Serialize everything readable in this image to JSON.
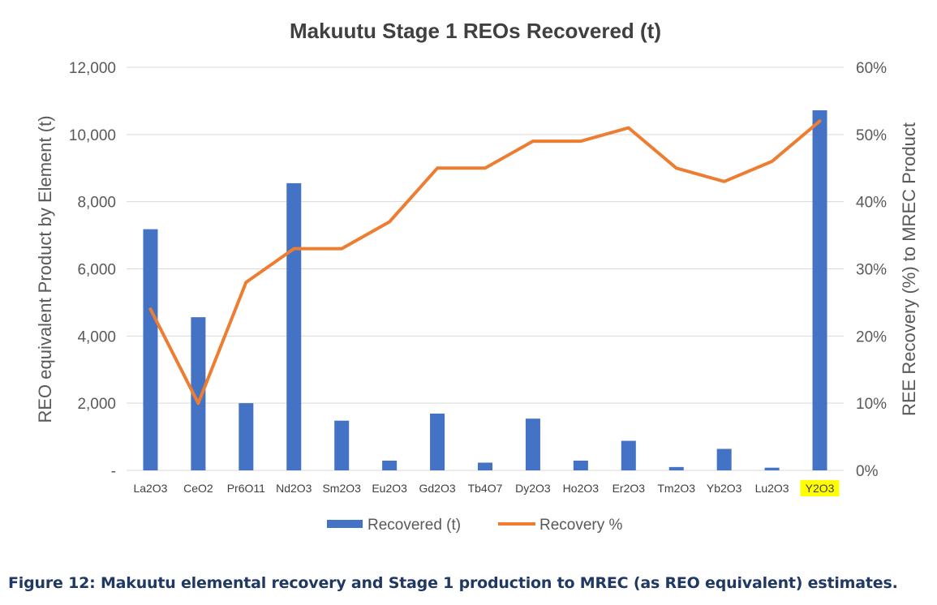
{
  "chart_data": {
    "type": "bar+line",
    "title": "Makuutu Stage 1 REOs Recovered (t)",
    "categories": [
      "La2O3",
      "CeO2",
      "Pr6O11",
      "Nd2O3",
      "Sm2O3",
      "Eu2O3",
      "Gd2O3",
      "Tb4O7",
      "Dy2O3",
      "Ho2O3",
      "Er2O3",
      "Tm2O3",
      "Yb2O3",
      "Lu2O3",
      "Y2O3"
    ],
    "highlighted_category": "Y2O3",
    "series": [
      {
        "name": "Recovered (t)",
        "type": "bar",
        "axis": "left",
        "color": "#4472c4",
        "values": [
          7180,
          4560,
          2000,
          8550,
          1480,
          290,
          1690,
          230,
          1540,
          290,
          880,
          100,
          640,
          80,
          10720
        ]
      },
      {
        "name": "Recovery %",
        "type": "line",
        "axis": "right",
        "color": "#ed7d31",
        "values": [
          24,
          10,
          28,
          33,
          33,
          37,
          45,
          45,
          49,
          49,
          51,
          45,
          43,
          46,
          52
        ]
      }
    ],
    "ylabel_left": "REO equivalent Product by Element (t)",
    "ylabel_right": "REE Recovery (%) to MREC Product",
    "ylim_left": [
      0,
      12000
    ],
    "ylim_right": [
      0,
      60
    ],
    "yticks_left": [
      "-",
      "2,000",
      "4,000",
      "6,000",
      "8,000",
      "10,000",
      "12,000"
    ],
    "yticks_right": [
      "0%",
      "10%",
      "20%",
      "30%",
      "40%",
      "50%",
      "60%"
    ],
    "grid": true,
    "legend_position": "bottom"
  },
  "caption": "Figure 12: Makuutu elemental recovery and Stage 1 production to MREC (as REO equivalent) estimates.",
  "colors": {
    "bar": "#4472c4",
    "line": "#ed7d31",
    "highlight": "#ffff00",
    "grid": "#d9d9d9",
    "caption": "#1f3864"
  }
}
